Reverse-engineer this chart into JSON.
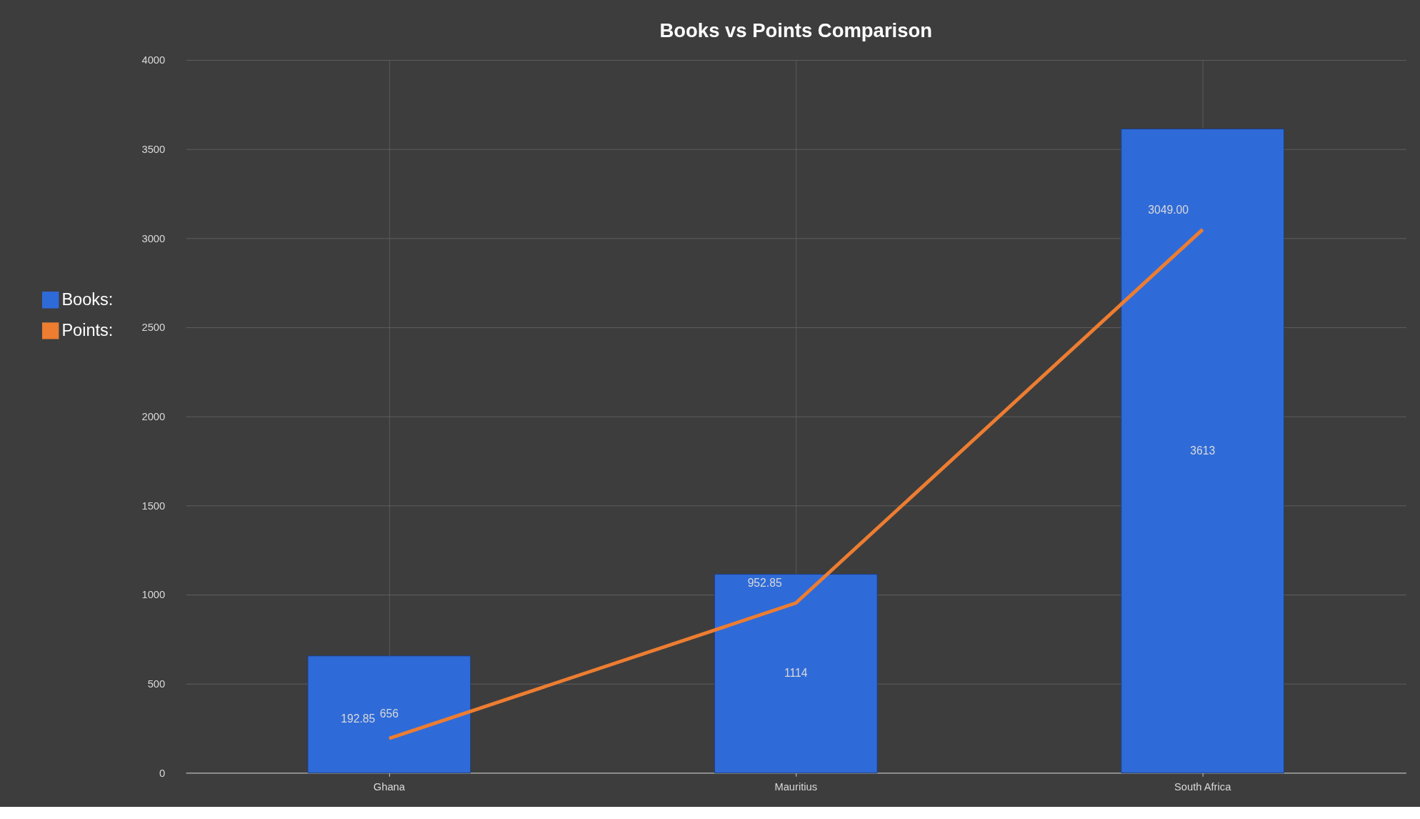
{
  "chart_data": {
    "type": "bar",
    "title": "Books vs Points Comparison",
    "categories": [
      "Ghana",
      "Mauritius",
      "South Africa"
    ],
    "series": [
      {
        "name": "Books:",
        "color": "#2f6bd8",
        "values": [
          656,
          1114,
          3613
        ],
        "value_labels": [
          "656",
          "1114",
          "3613"
        ]
      },
      {
        "name": "Points:",
        "type": "line",
        "color": "#ed7d31",
        "values": [
          192.85,
          952.85,
          3049.0
        ],
        "value_labels": [
          "192.85",
          "952.85",
          "3049.00"
        ]
      }
    ],
    "ylim": [
      0,
      4000
    ],
    "yticks": [
      0,
      500,
      1000,
      1500,
      2000,
      2500,
      3000,
      3500,
      4000
    ],
    "grid": true,
    "legend": "left"
  }
}
